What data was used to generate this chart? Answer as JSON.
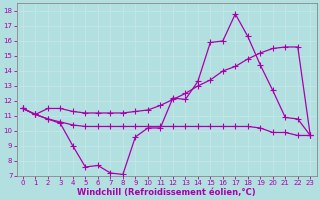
{
  "xlabel": "Windchill (Refroidissement éolien,°C)",
  "xlim": [
    -0.5,
    23.5
  ],
  "ylim": [
    7,
    18.5
  ],
  "xticks": [
    0,
    1,
    2,
    3,
    4,
    5,
    6,
    7,
    8,
    9,
    10,
    11,
    12,
    13,
    14,
    15,
    16,
    17,
    18,
    19,
    20,
    21,
    22,
    23
  ],
  "yticks": [
    7,
    8,
    9,
    10,
    11,
    12,
    13,
    14,
    15,
    16,
    17,
    18
  ],
  "bg_color": "#b2e0e0",
  "grid_color": "#c8e8e8",
  "line_color": "#aa00aa",
  "line1_x": [
    0,
    1,
    2,
    3,
    4,
    5,
    6,
    7,
    8,
    9,
    10,
    11,
    12,
    13,
    14,
    15,
    16,
    17,
    18,
    19,
    20,
    21,
    22,
    23
  ],
  "line1_y": [
    11.5,
    11.1,
    10.8,
    10.5,
    9.0,
    7.6,
    7.7,
    7.2,
    7.1,
    9.6,
    10.2,
    10.2,
    12.2,
    12.1,
    13.3,
    15.9,
    16.0,
    17.8,
    16.3,
    14.4,
    12.7,
    10.9,
    10.8,
    9.7
  ],
  "line2_x": [
    0,
    1,
    2,
    3,
    4,
    5,
    6,
    7,
    8,
    9,
    10,
    11,
    12,
    13,
    14,
    15,
    16,
    17,
    18,
    19,
    20,
    21,
    22,
    23
  ],
  "line2_y": [
    11.5,
    11.1,
    11.5,
    11.5,
    11.3,
    11.2,
    11.2,
    11.2,
    11.2,
    11.3,
    11.4,
    11.7,
    12.1,
    12.5,
    13.0,
    13.4,
    14.0,
    14.3,
    14.8,
    15.2,
    15.5,
    15.6,
    15.6,
    9.7
  ],
  "line3_x": [
    0,
    1,
    2,
    3,
    4,
    5,
    6,
    7,
    8,
    9,
    10,
    11,
    12,
    13,
    14,
    15,
    16,
    17,
    18,
    19,
    20,
    21,
    22,
    23
  ],
  "line3_y": [
    11.5,
    11.1,
    10.8,
    10.6,
    10.4,
    10.3,
    10.3,
    10.3,
    10.3,
    10.3,
    10.3,
    10.3,
    10.3,
    10.3,
    10.3,
    10.3,
    10.3,
    10.3,
    10.3,
    10.2,
    9.9,
    9.9,
    9.7,
    9.7
  ],
  "marker": "+",
  "markersize": 4.0,
  "linewidth": 0.9,
  "tick_fontsize": 5.0,
  "label_fontsize": 6.0
}
